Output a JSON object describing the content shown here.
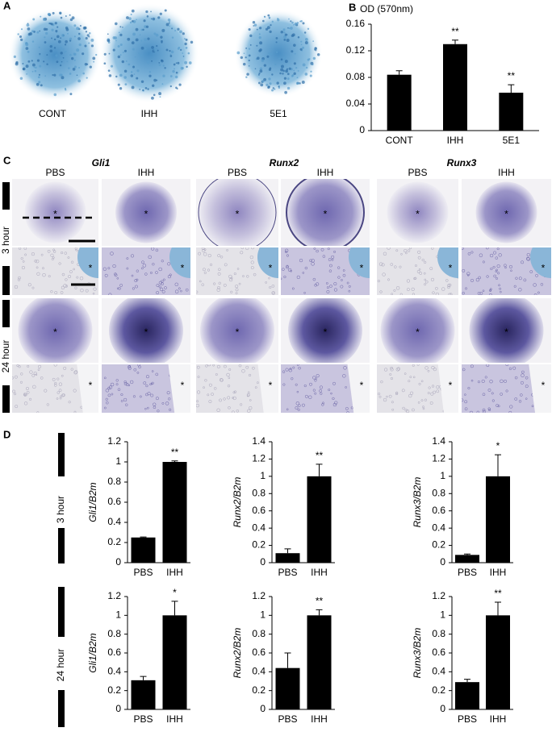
{
  "panel_labels": [
    "A",
    "B",
    "C",
    "D"
  ],
  "panel_a": {
    "labels": [
      "CONT",
      "IHH",
      "5E1"
    ]
  },
  "panel_c": {
    "genes": [
      "Gli1",
      "Runx2",
      "Runx3"
    ],
    "conditions": [
      "PBS",
      "IHH"
    ],
    "times": [
      "3 hour",
      "24 hour"
    ],
    "asterisk": "*"
  },
  "panel_d": {
    "rows": [
      "3 hour",
      "24 hour"
    ]
  },
  "chart_data": [
    {
      "type": "bar",
      "title": "OD (570nm)",
      "categories": [
        "CONT",
        "IHH",
        "5E1"
      ],
      "values": [
        0.084,
        0.13,
        0.057
      ],
      "errors": [
        0.006,
        0.006,
        0.012
      ],
      "annotations": [
        null,
        "**",
        "**"
      ],
      "color": "#000000",
      "ylim": [
        0,
        0.16
      ],
      "yticks": [
        0,
        0.04,
        0.08,
        0.12,
        0.16
      ]
    },
    {
      "type": "bar",
      "ylabel": "Gli1/B2m",
      "categories": [
        "PBS",
        "IHH"
      ],
      "values": [
        0.25,
        1.0
      ],
      "errors": [
        0.005,
        0.01
      ],
      "annotations": [
        null,
        "**"
      ],
      "color": "#000000",
      "ylim": [
        0,
        1.2
      ],
      "yticks": [
        0,
        0.2,
        0.4,
        0.6,
        0.8,
        1,
        1.2
      ]
    },
    {
      "type": "bar",
      "ylabel": "Runx2/B2m",
      "categories": [
        "PBS",
        "IHH"
      ],
      "values": [
        0.11,
        1.0
      ],
      "errors": [
        0.05,
        0.14
      ],
      "annotations": [
        null,
        "**"
      ],
      "color": "#000000",
      "ylim": [
        0,
        1.4
      ],
      "yticks": [
        0,
        0.2,
        0.4,
        0.6,
        0.8,
        1,
        1.2,
        1.4
      ]
    },
    {
      "type": "bar",
      "ylabel": "Runx3/B2m",
      "categories": [
        "PBS",
        "IHH"
      ],
      "values": [
        0.09,
        1.0
      ],
      "errors": [
        0.01,
        0.25
      ],
      "annotations": [
        null,
        "*"
      ],
      "color": "#000000",
      "ylim": [
        0,
        1.4
      ],
      "yticks": [
        0,
        0.2,
        0.4,
        0.6,
        0.8,
        1,
        1.2,
        1.4
      ]
    },
    {
      "type": "bar",
      "ylabel": "Gli1/B2m",
      "categories": [
        "PBS",
        "IHH"
      ],
      "values": [
        0.31,
        1.0
      ],
      "errors": [
        0.04,
        0.15
      ],
      "annotations": [
        null,
        "*"
      ],
      "color": "#000000",
      "ylim": [
        0,
        1.2
      ],
      "yticks": [
        0,
        0.2,
        0.4,
        0.6,
        0.8,
        1,
        1.2
      ]
    },
    {
      "type": "bar",
      "ylabel": "Runx2/B2m",
      "categories": [
        "PBS",
        "IHH"
      ],
      "values": [
        0.44,
        1.0
      ],
      "errors": [
        0.16,
        0.06
      ],
      "annotations": [
        null,
        "**"
      ],
      "color": "#000000",
      "ylim": [
        0,
        1.2
      ],
      "yticks": [
        0,
        0.2,
        0.4,
        0.6,
        0.8,
        1,
        1.2
      ]
    },
    {
      "type": "bar",
      "ylabel": "Runx3/B2m",
      "categories": [
        "PBS",
        "IHH"
      ],
      "values": [
        0.29,
        1.0
      ],
      "errors": [
        0.03,
        0.14
      ],
      "annotations": [
        null,
        "**"
      ],
      "color": "#000000",
      "ylim": [
        0,
        1.2
      ],
      "yticks": [
        0,
        0.2,
        0.4,
        0.6,
        0.8,
        1,
        1.2
      ]
    }
  ]
}
